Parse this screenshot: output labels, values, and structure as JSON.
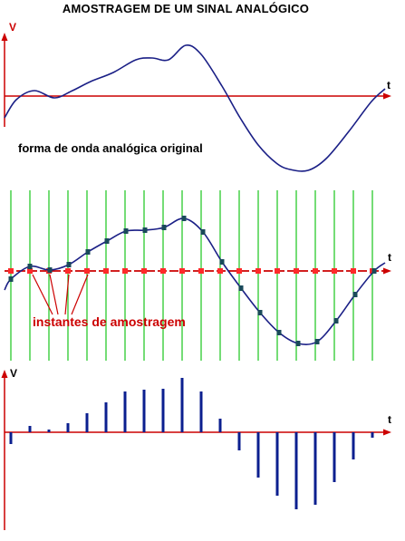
{
  "title": "AMOSTRAGEM DE UM SINAL ANALÓGICO",
  "axis": {
    "v_label": "V",
    "t_label": "t"
  },
  "labels": {
    "analog_caption": "forma de onda analógica original",
    "sampling_caption": "instantes de amostragem"
  },
  "colors": {
    "axis": "#cc0000",
    "signal": "#1a1f86",
    "grid": "#19c61c",
    "sample_marker": "#ff2a2a",
    "sample_point": "#1a4a5a",
    "stem": "#0b1f8f",
    "text": "#000000",
    "annotation": "#cc0000"
  }
}
